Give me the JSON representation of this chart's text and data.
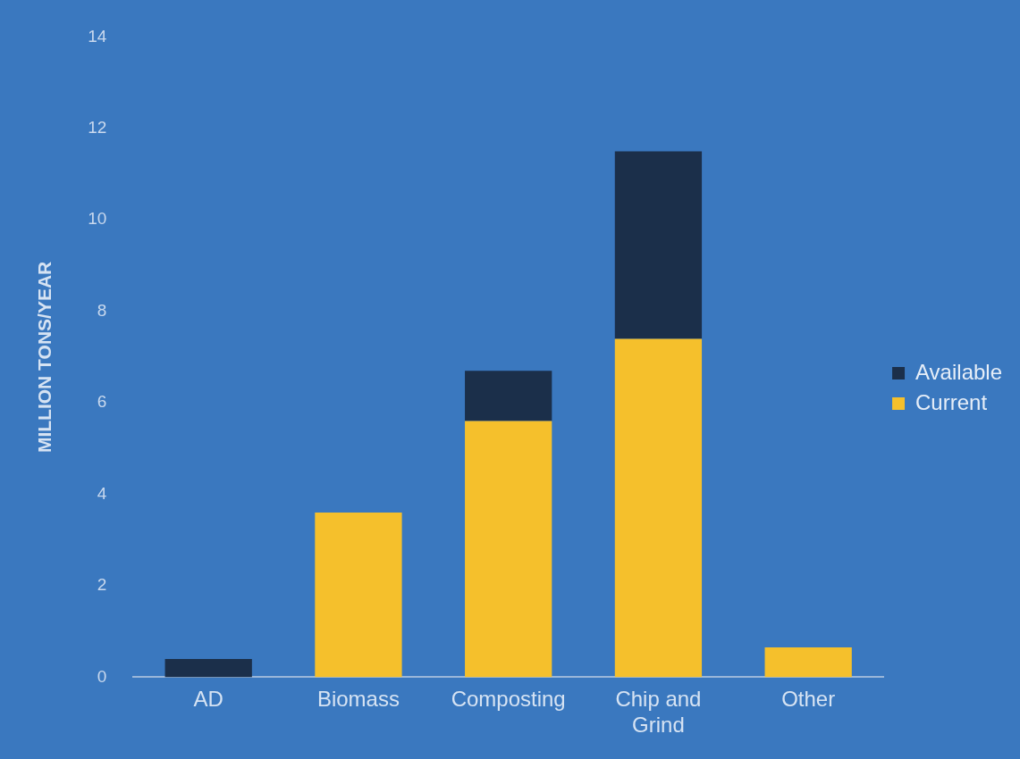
{
  "chart_data": {
    "type": "bar",
    "ylabel": "MILLION TONS/YEAR",
    "categories": [
      "AD",
      "Biomass",
      "Composting",
      "Chip and Grind",
      "Other"
    ],
    "series": [
      {
        "name": "Current",
        "color": "#f5c02c",
        "values": [
          0,
          3.6,
          5.6,
          7.4,
          0.65
        ]
      },
      {
        "name": "Available",
        "color": "#1b2f4a",
        "values": [
          0.4,
          0,
          1.1,
          4.1,
          0
        ]
      }
    ],
    "stacked": true,
    "ylim": [
      0,
      14
    ],
    "yticks": [
      0,
      2,
      4,
      6,
      8,
      10,
      12,
      14
    ],
    "grid": false,
    "legend": "right"
  }
}
